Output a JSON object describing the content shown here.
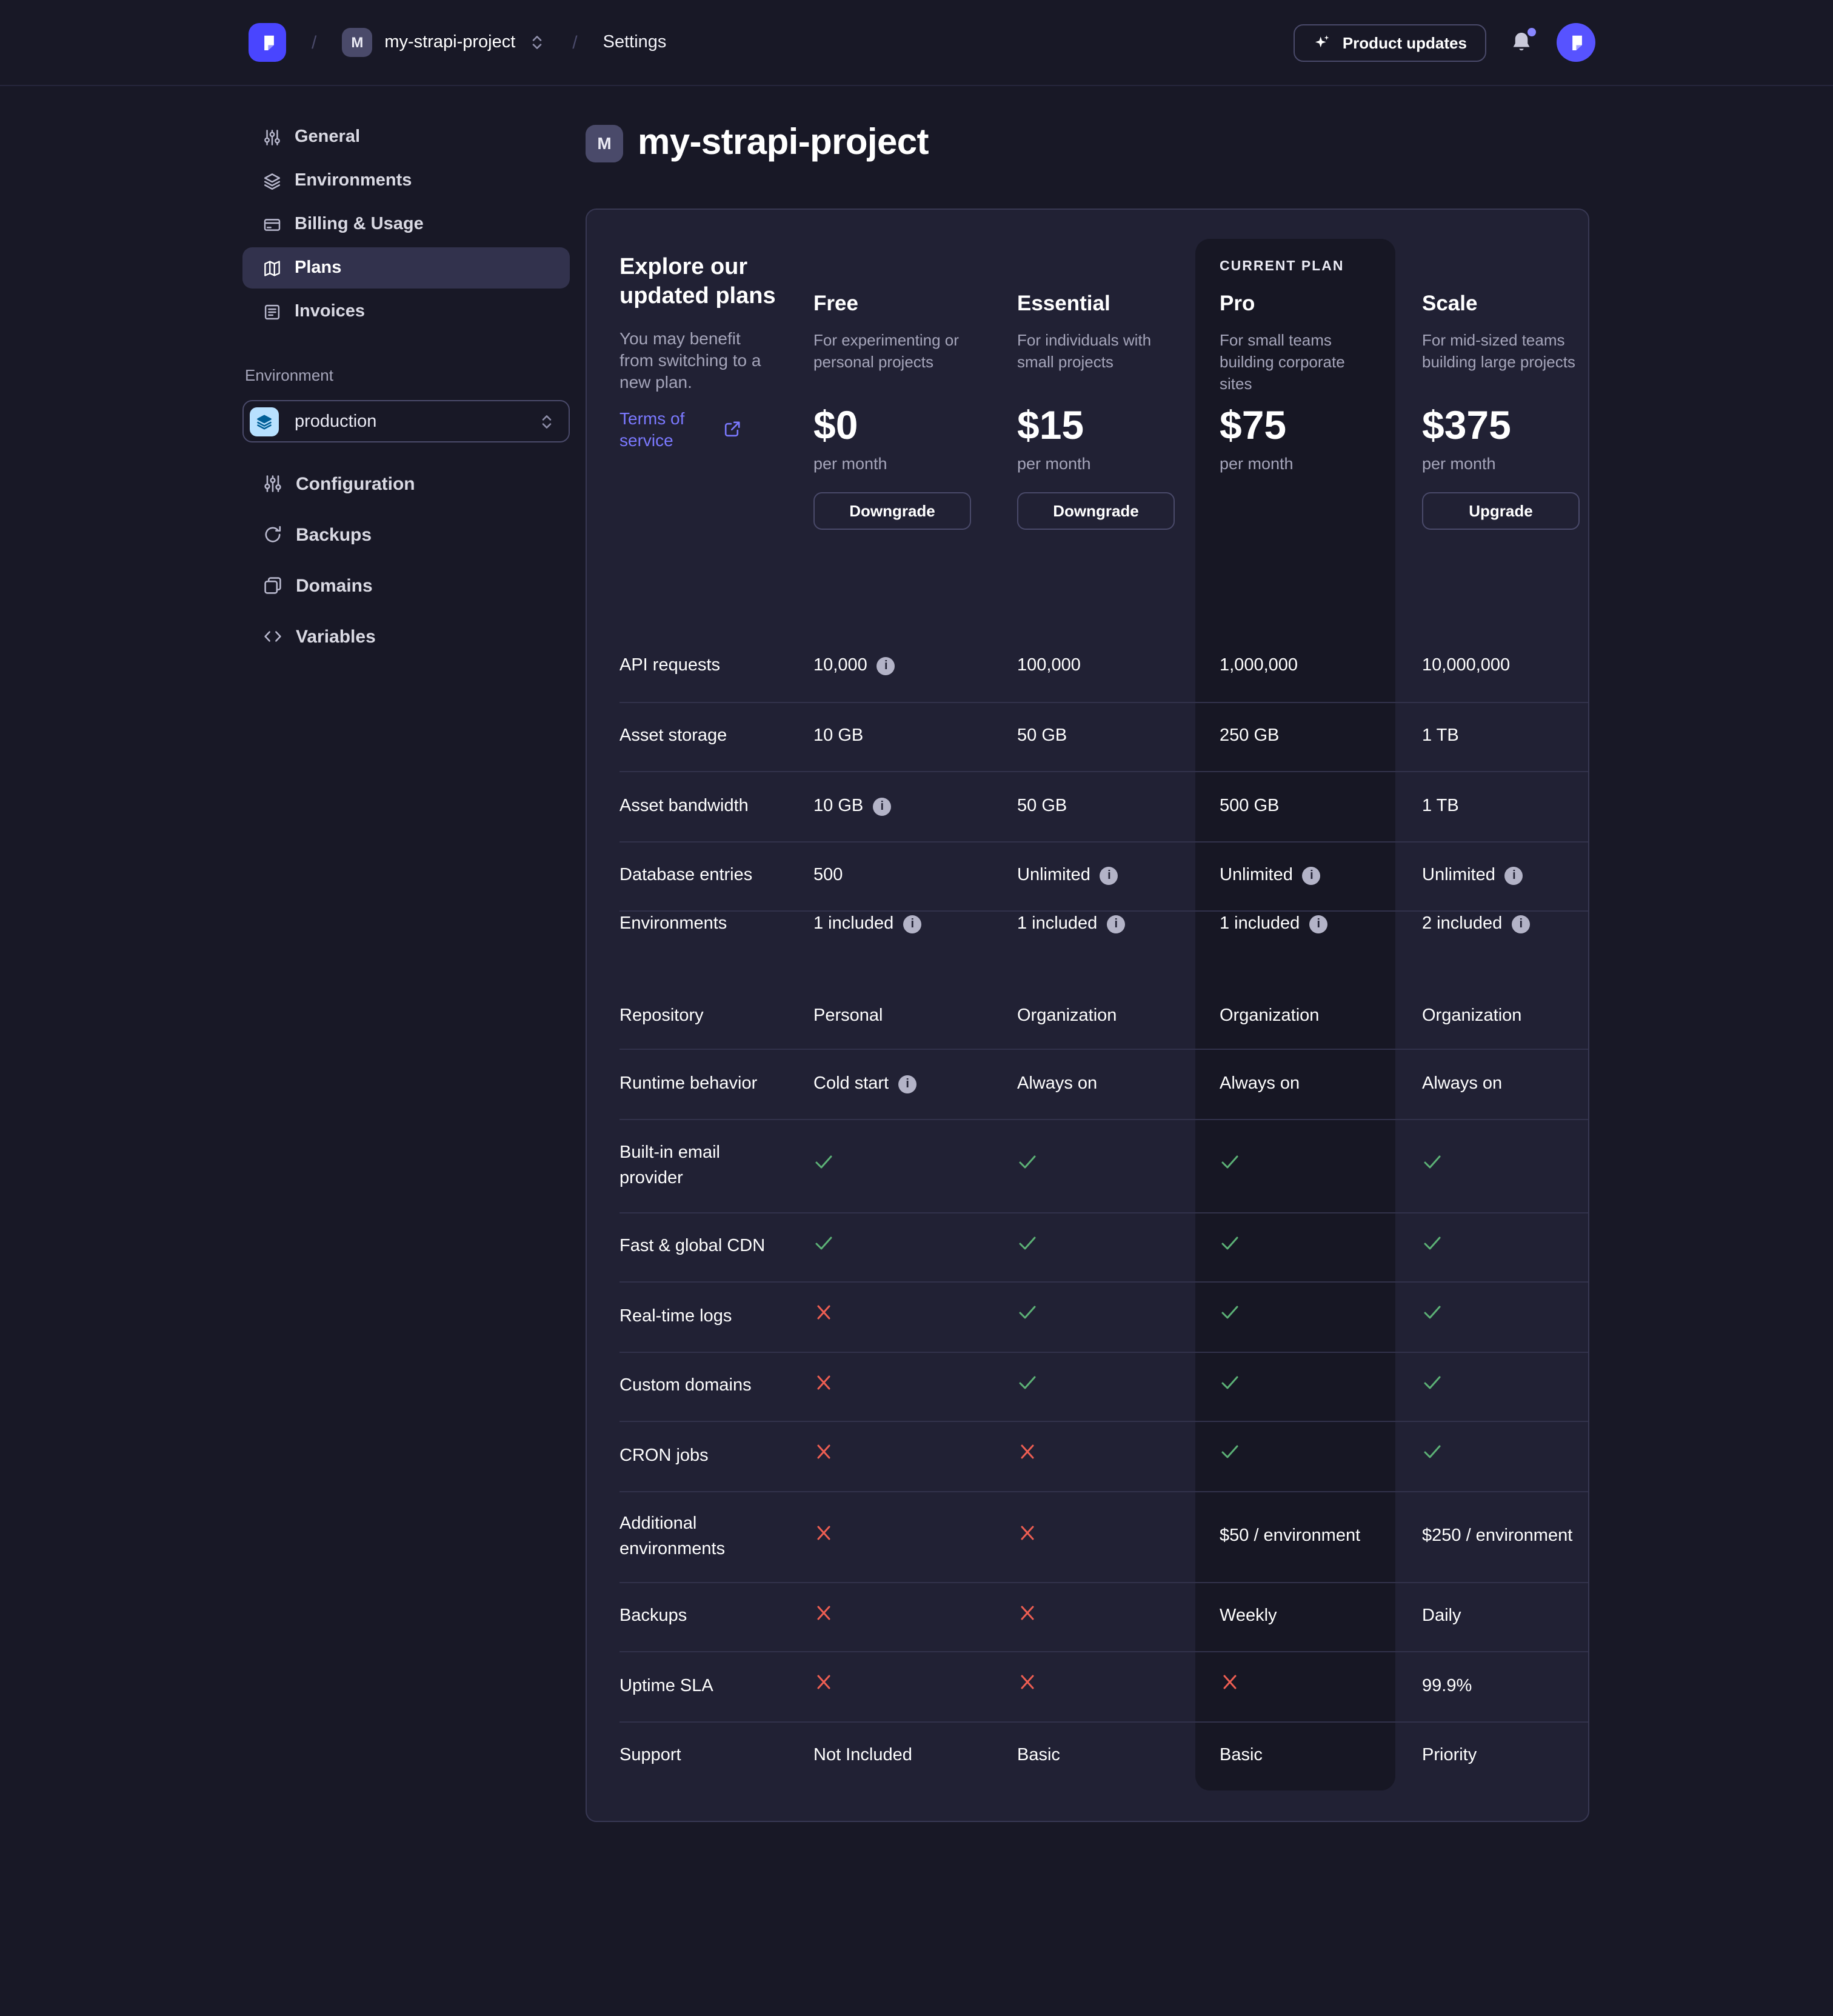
{
  "topbar": {
    "breadcrumb": {
      "separator": "/",
      "project_initial": "M",
      "project_name": "my-strapi-project",
      "section": "Settings"
    },
    "product_updates_label": "Product updates"
  },
  "sidebar": {
    "items": [
      {
        "icon": "sliders",
        "label": "General",
        "active": false
      },
      {
        "icon": "layers",
        "label": "Environments",
        "active": false
      },
      {
        "icon": "credit-card",
        "label": "Billing & Usage",
        "active": false
      },
      {
        "icon": "map",
        "label": "Plans",
        "active": true
      },
      {
        "icon": "invoice",
        "label": "Invoices",
        "active": false
      }
    ],
    "environment_section": {
      "label": "Environment",
      "selected": "production",
      "items": [
        {
          "icon": "sliders",
          "label": "Configuration"
        },
        {
          "icon": "refresh",
          "label": "Backups"
        },
        {
          "icon": "stack",
          "label": "Domains"
        },
        {
          "icon": "code",
          "label": "Variables"
        }
      ]
    }
  },
  "main": {
    "project_initial": "M",
    "title": "my-strapi-project",
    "intro": {
      "heading": "Explore our updated plans",
      "description": "You may benefit from switching to a new plan.",
      "link_label": "Terms of service"
    },
    "current_plan_badge": "CURRENT PLAN",
    "plans": [
      {
        "name": "Free",
        "description": "For experimenting or personal projects",
        "price": "$0",
        "period": "per month",
        "button": "Downgrade",
        "current": false
      },
      {
        "name": "Essential",
        "description": "For individuals with small projects",
        "price": "$15",
        "period": "per month",
        "button": "Downgrade",
        "current": false
      },
      {
        "name": "Pro",
        "description": "For small teams building corporate sites",
        "price": "$75",
        "period": "per month",
        "button": null,
        "current": true
      },
      {
        "name": "Scale",
        "description": "For mid-sized teams building large projects",
        "price": "$375",
        "period": "per month",
        "button": "Upgrade",
        "current": false
      }
    ],
    "features": [
      {
        "label": "API requests",
        "values": [
          {
            "text": "10,000",
            "info": true
          },
          {
            "text": "100,000"
          },
          {
            "text": "1,000,000"
          },
          {
            "text": "10,000,000"
          }
        ]
      },
      {
        "label": "Asset storage",
        "values": [
          {
            "text": "10 GB"
          },
          {
            "text": "50 GB"
          },
          {
            "text": "250 GB"
          },
          {
            "text": "1 TB"
          }
        ]
      },
      {
        "label": "Asset bandwidth",
        "values": [
          {
            "text": "10 GB",
            "info": true
          },
          {
            "text": "50 GB"
          },
          {
            "text": "500 GB"
          },
          {
            "text": "1 TB"
          }
        ]
      },
      {
        "label": "Database entries",
        "values": [
          {
            "text": "500"
          },
          {
            "text": "Unlimited",
            "info": true
          },
          {
            "text": "Unlimited",
            "info": true
          },
          {
            "text": "Unlimited",
            "info": true
          }
        ]
      },
      {
        "label": "Environments",
        "section_end": true,
        "values": [
          {
            "text": "1 included",
            "info": true
          },
          {
            "text": "1 included",
            "info": true
          },
          {
            "text": "1 included",
            "info": true
          },
          {
            "text": "2 included",
            "info": true
          }
        ]
      },
      {
        "label": "Repository",
        "values": [
          {
            "text": "Personal"
          },
          {
            "text": "Organization"
          },
          {
            "text": "Organization"
          },
          {
            "text": "Organization"
          }
        ]
      },
      {
        "label": "Runtime behavior",
        "values": [
          {
            "text": "Cold start",
            "info": true
          },
          {
            "text": "Always on"
          },
          {
            "text": "Always on"
          },
          {
            "text": "Always on"
          }
        ]
      },
      {
        "label": "Built-in email provider",
        "values": [
          {
            "check": true
          },
          {
            "check": true
          },
          {
            "check": true
          },
          {
            "check": true
          }
        ]
      },
      {
        "label": "Fast & global CDN",
        "values": [
          {
            "check": true
          },
          {
            "check": true
          },
          {
            "check": true
          },
          {
            "check": true
          }
        ]
      },
      {
        "label": "Real-time logs",
        "values": [
          {
            "cross": true
          },
          {
            "check": true
          },
          {
            "check": true
          },
          {
            "check": true
          }
        ]
      },
      {
        "label": "Custom domains",
        "values": [
          {
            "cross": true
          },
          {
            "check": true
          },
          {
            "check": true
          },
          {
            "check": true
          }
        ]
      },
      {
        "label": "CRON jobs",
        "values": [
          {
            "cross": true
          },
          {
            "cross": true
          },
          {
            "check": true
          },
          {
            "check": true
          }
        ]
      },
      {
        "label": "Additional environments",
        "values": [
          {
            "cross": true
          },
          {
            "cross": true
          },
          {
            "text": "$50 / environment"
          },
          {
            "text": "$250 / environment"
          }
        ]
      },
      {
        "label": "Backups",
        "values": [
          {
            "cross": true
          },
          {
            "cross": true
          },
          {
            "text": "Weekly"
          },
          {
            "text": "Daily"
          }
        ]
      },
      {
        "label": "Uptime SLA",
        "values": [
          {
            "cross": true
          },
          {
            "cross": true
          },
          {
            "cross": true
          },
          {
            "text": "99.9%"
          }
        ]
      },
      {
        "label": "Support",
        "values": [
          {
            "text": "Not Included"
          },
          {
            "text": "Basic"
          },
          {
            "text": "Basic"
          },
          {
            "text": "Priority"
          }
        ]
      }
    ]
  },
  "colors": {
    "accent": "#4945ff",
    "link": "#7b79ff",
    "success": "#5cb176",
    "danger": "#ee5e52",
    "card": "#212134",
    "background": "#181826",
    "current_plan_highlight": "#171724"
  }
}
